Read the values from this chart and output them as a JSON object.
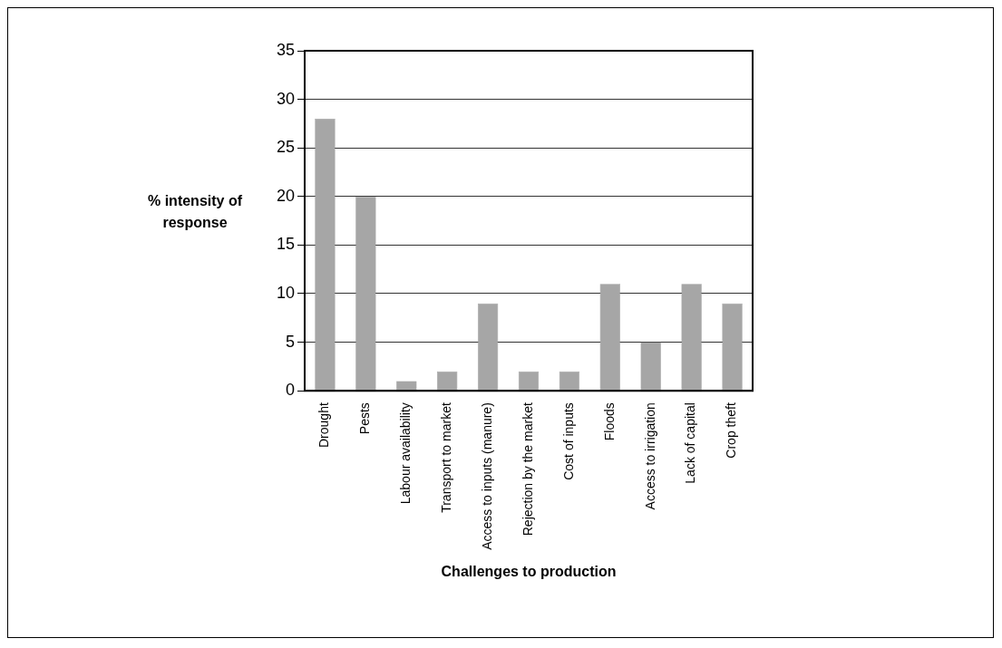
{
  "chart_data": {
    "type": "bar",
    "xlabel": "Challenges to production",
    "ylabel": "% intensity of response",
    "categories": [
      "Drought",
      "Pests",
      "Labour availability",
      "Transport to market",
      "Access to inputs (manure)",
      "Rejection by the market",
      "Cost of inputs",
      "Floods",
      "Access to irrigation",
      "Lack of capital",
      "Crop theft"
    ],
    "values": [
      28,
      20,
      1,
      2,
      9,
      2,
      2,
      11,
      5,
      11,
      9
    ],
    "color": "#a6a6a6",
    "ylim": [
      0,
      35
    ],
    "yticks": [
      0,
      5,
      10,
      15,
      20,
      25,
      30,
      35
    ],
    "grid": "y",
    "legend": false
  }
}
